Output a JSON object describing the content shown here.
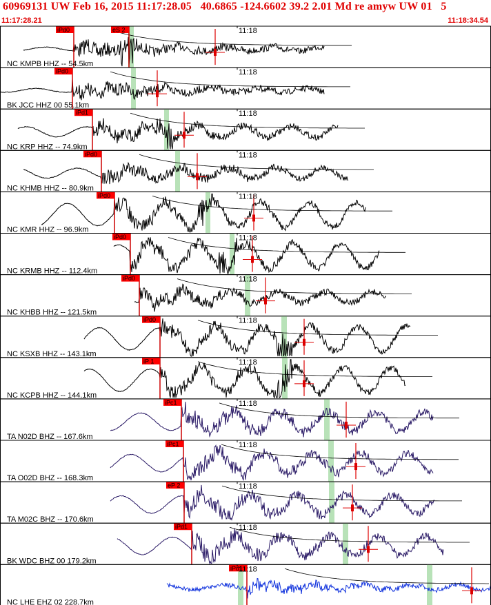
{
  "header": {
    "title": "60969131 UW Feb 16, 2015 11:17:28.05   40.6865 -124.6602 39.2 2.01 Md re amyw UW 01   5",
    "start_time": "11:17:28.21",
    "end_time": "11:18:34.54"
  },
  "minute_label": "11:18",
  "colors": {
    "pick_flag": "#ff0000",
    "pick_line": "#cc0000",
    "window_shade": "#b8e2b8",
    "frame": "#000000",
    "title_text": "#e00000"
  },
  "traces": [
    {
      "label": "NC KMPB HHZ -- 54.5km",
      "color": "#000000",
      "picks": [
        {
          "text": "iPd0"
        },
        {
          "text": "eS 2"
        }
      ]
    },
    {
      "label": "BK JCC HHZ 00 55.1km",
      "color": "#000000",
      "picks": [
        {
          "text": "iPd0"
        }
      ]
    },
    {
      "label": "NC KRP HHZ -- 74.9km",
      "color": "#000000",
      "picks": [
        {
          "text": "iPd1"
        }
      ]
    },
    {
      "label": "NC KHMB HHZ -- 80.9km",
      "color": "#000000",
      "picks": [
        {
          "text": "iPd0"
        }
      ]
    },
    {
      "label": "NC KMR HHZ -- 96.9km",
      "color": "#000000",
      "picks": [
        {
          "text": "iPd0"
        }
      ]
    },
    {
      "label": "NC KRMB HHZ -- 112.4km",
      "color": "#000000",
      "picks": [
        {
          "text": "iPd0"
        }
      ]
    },
    {
      "label": "NC KHBB HHZ -- 121.5km",
      "color": "#000000",
      "picks": [
        {
          "text": "iPd0"
        }
      ]
    },
    {
      "label": "NC KSXB HHZ -- 143.1km",
      "color": "#000000",
      "picks": [
        {
          "text": "iPd0"
        }
      ]
    },
    {
      "label": "NC KCPB HHZ -- 144.1km",
      "color": "#000000",
      "picks": [
        {
          "text": "iP 1"
        }
      ]
    },
    {
      "label": "TA N02D BHZ -- 167.6km",
      "color": "#2a1a66",
      "picks": [
        {
          "text": "iPc1"
        }
      ]
    },
    {
      "label": "TA O02D BHZ -- 168.3km",
      "color": "#2a1a66",
      "picks": [
        {
          "text": "iPc1"
        }
      ]
    },
    {
      "label": "TA M02C BHZ -- 170.6km",
      "color": "#2a1a66",
      "picks": [
        {
          "text": "eP 2"
        }
      ]
    },
    {
      "label": "BK WDC BHZ 00 179.2km",
      "color": "#2a1a66",
      "picks": [
        {
          "text": "iPd1"
        }
      ]
    },
    {
      "label": "NC LHE EHZ 02 228.7km",
      "color": "#1133dd",
      "picks": [
        {
          "text": "iPd1"
        }
      ]
    }
  ]
}
